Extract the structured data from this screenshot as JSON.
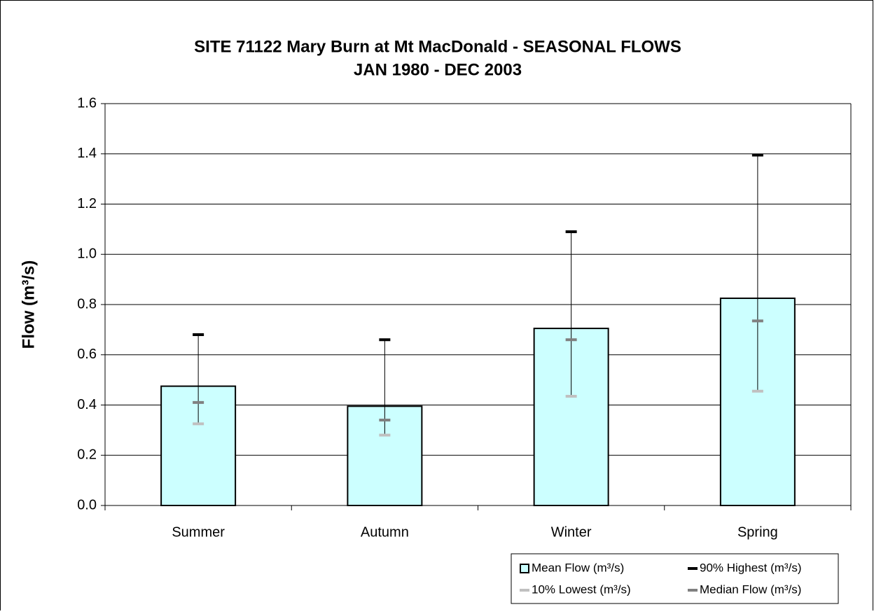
{
  "chart_data": {
    "type": "bar",
    "title": "SITE 71122 Mary Burn at Mt MacDonald - SEASONAL FLOWS",
    "subtitle": "JAN 1980 - DEC 2003",
    "y_label": "Flow (m³/s)",
    "categories": [
      "Summer",
      "Autumn",
      "Winter",
      "Spring"
    ],
    "series": [
      {
        "name": "Mean Flow (m³/s)",
        "type": "bar",
        "color": "#ccffff",
        "values": [
          0.475,
          0.395,
          0.705,
          0.825
        ]
      },
      {
        "name": "90% Highest (m³/s)",
        "type": "marker",
        "color": "#000000",
        "values": [
          0.68,
          0.66,
          1.09,
          1.395
        ]
      },
      {
        "name": "10% Lowest (m³/s)",
        "type": "marker",
        "color": "#c0c0c0",
        "values": [
          0.325,
          0.28,
          0.435,
          0.455
        ]
      },
      {
        "name": "Median Flow (m³/s)",
        "type": "marker",
        "color": "#808080",
        "values": [
          0.41,
          0.34,
          0.66,
          0.735
        ]
      }
    ],
    "ylim": [
      0,
      1.6
    ],
    "yticks": [
      {
        "value": 0,
        "label": "0.0"
      },
      0.2,
      0.4,
      0.6,
      0.8,
      {
        "value": 1,
        "label": "1.0"
      },
      1.2,
      1.4,
      1.6
    ],
    "grid": true
  }
}
